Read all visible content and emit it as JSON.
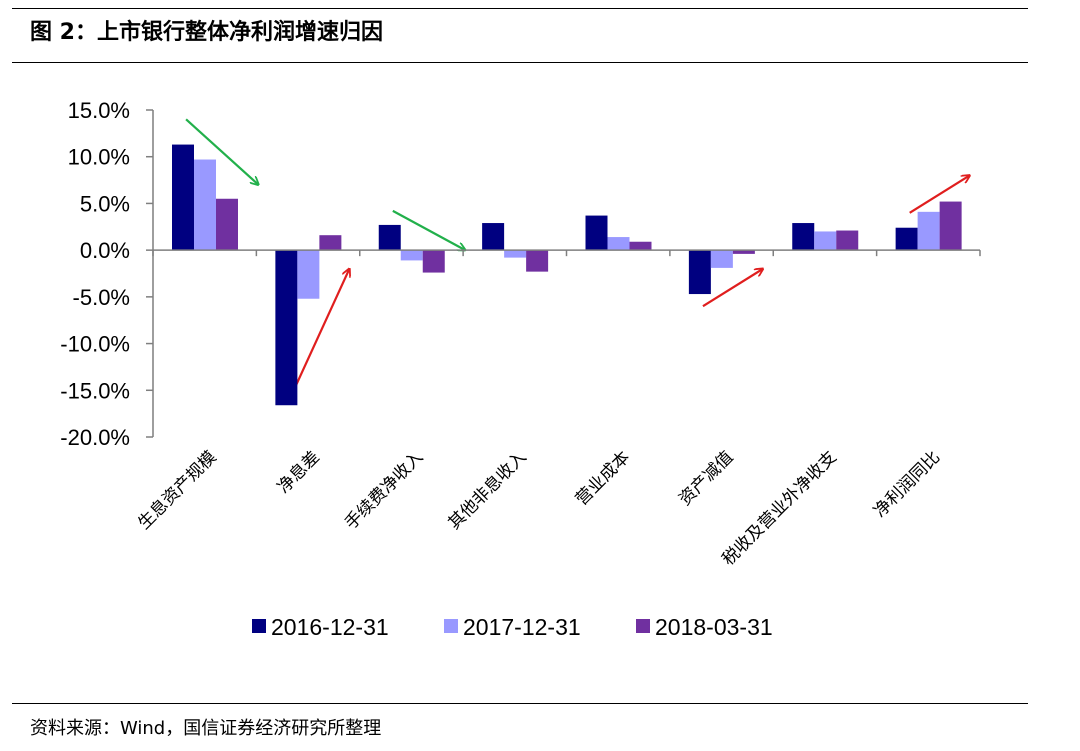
{
  "figure": {
    "title": "图 2：上市银行整体净利润增速归因",
    "source": "资料来源：Wind，国信证券经济研究所整理"
  },
  "chart_data": {
    "type": "bar",
    "categories": [
      "生息资产规模",
      "净息差",
      "手续费净收入",
      "其他非息收入",
      "营业成本",
      "资产减值",
      "税收及营业外净收支",
      "净利润同比"
    ],
    "series": [
      {
        "name": "2016-12-31",
        "color": "#000080",
        "values": [
          11.3,
          -16.6,
          2.7,
          2.9,
          3.7,
          -4.7,
          2.9,
          2.4
        ]
      },
      {
        "name": "2017-12-31",
        "color": "#9999ff",
        "values": [
          9.7,
          -5.2,
          -1.1,
          -0.8,
          1.4,
          -1.9,
          2.0,
          4.1
        ]
      },
      {
        "name": "2018-03-31",
        "color": "#7030a0",
        "values": [
          5.5,
          1.6,
          -2.4,
          -2.3,
          0.9,
          -0.4,
          2.1,
          5.2
        ]
      }
    ],
    "ylim": [
      -20,
      15
    ],
    "yticks": [
      15,
      10,
      5,
      0,
      -5,
      -10,
      -15,
      -20
    ],
    "ytick_labels": [
      "15.0%",
      "10.0%",
      "5.0%",
      "0.0%",
      "-5.0%",
      "-10.0%",
      "-15.0%",
      "-20.0%"
    ],
    "xlabel": "",
    "ylabel": "",
    "grid": false,
    "legend_position": "bottom",
    "annotations": [
      {
        "type": "arrow",
        "color": "#22b04b",
        "category": "生息资产规模",
        "from": 14.0,
        "to": 7.0
      },
      {
        "type": "arrow",
        "color": "#e01e1e",
        "category": "净息差",
        "from": -16.0,
        "to": -2.0
      },
      {
        "type": "arrow",
        "color": "#22b04b",
        "category": "手续费净收入",
        "from": 4.2,
        "to": 0.0
      },
      {
        "type": "arrow",
        "color": "#e01e1e",
        "category": "资产减值",
        "from": -6.0,
        "to": -2.0
      },
      {
        "type": "arrow",
        "color": "#e01e1e",
        "category": "净利润同比",
        "from": 4.0,
        "to": 8.0
      }
    ]
  }
}
